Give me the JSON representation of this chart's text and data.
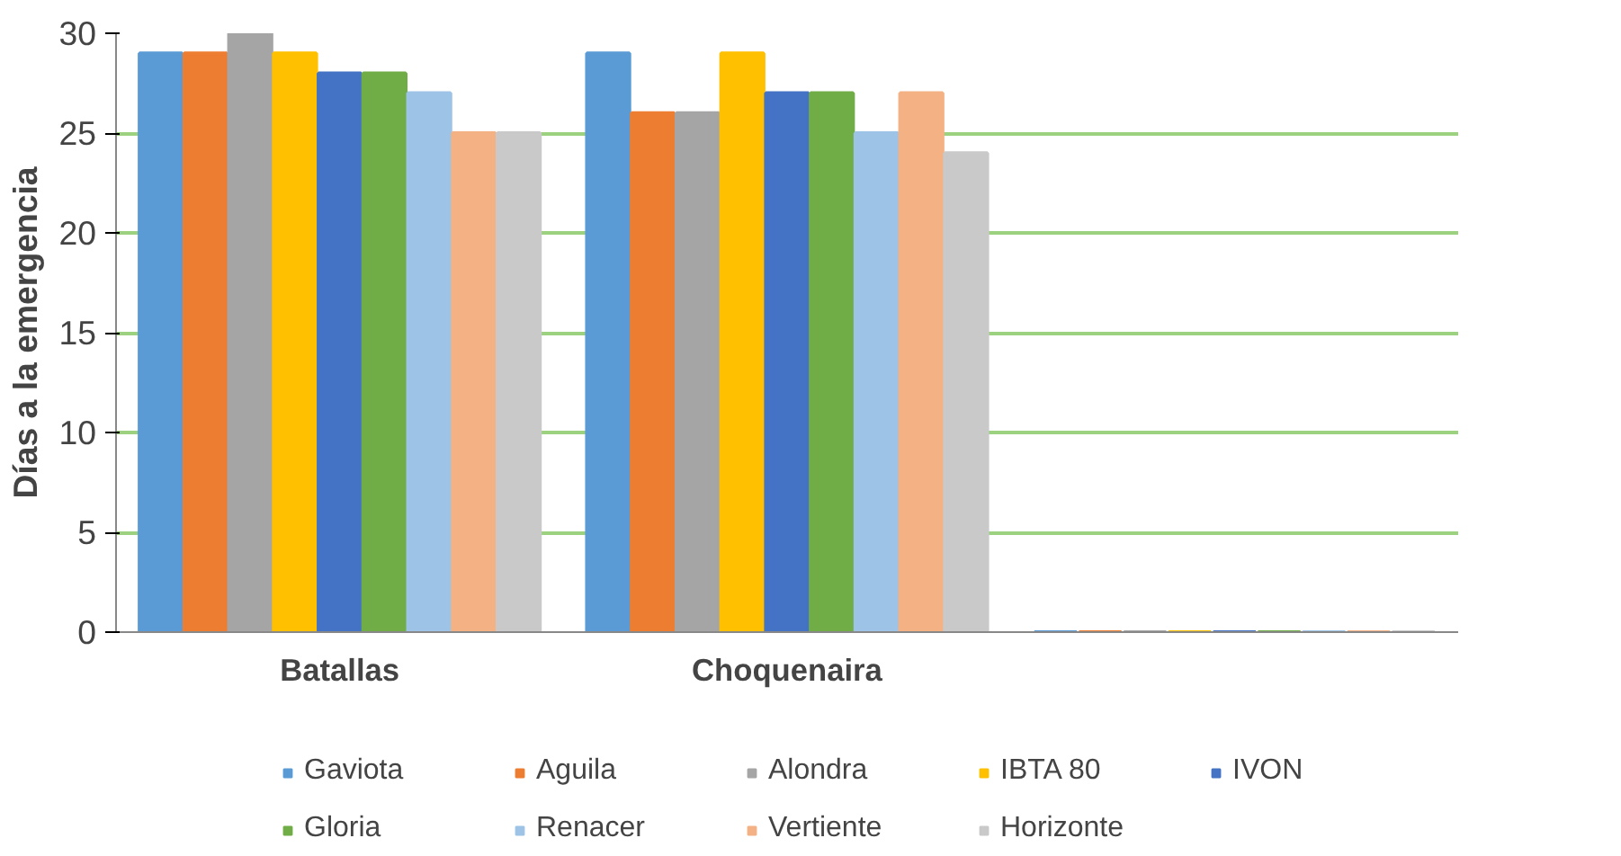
{
  "chart_data": {
    "type": "bar",
    "ylabel": "Días a la emergencia",
    "categories": [
      "Batallas",
      "Choquenaira",
      null
    ],
    "series": [
      {
        "name": "Gaviota",
        "color": "#5b9bd5",
        "values": [
          29,
          29,
          0
        ]
      },
      {
        "name": "Aguila",
        "color": "#ed7d31",
        "values": [
          29,
          26,
          0
        ]
      },
      {
        "name": "Alondra",
        "color": "#a5a5a5",
        "values": [
          30,
          26,
          0
        ]
      },
      {
        "name": "IBTA 80",
        "color": "#ffc000",
        "values": [
          29,
          29,
          0
        ]
      },
      {
        "name": "IVON",
        "color": "#4472c4",
        "values": [
          28,
          27,
          0
        ]
      },
      {
        "name": "Gloria",
        "color": "#70ad47",
        "values": [
          28,
          27,
          0
        ]
      },
      {
        "name": "Renacer",
        "color": "#9dc3e6",
        "values": [
          27,
          25,
          0
        ]
      },
      {
        "name": "Vertiente",
        "color": "#f4b183",
        "values": [
          25,
          27,
          0
        ]
      },
      {
        "name": "Horizonte",
        "color": "#c9c9c9",
        "values": [
          25,
          24,
          0
        ]
      }
    ],
    "ylim": [
      0,
      30
    ],
    "yticks": [
      0,
      5,
      10,
      15,
      20,
      25,
      30
    ],
    "grid": "y",
    "legend": "bottom"
  }
}
